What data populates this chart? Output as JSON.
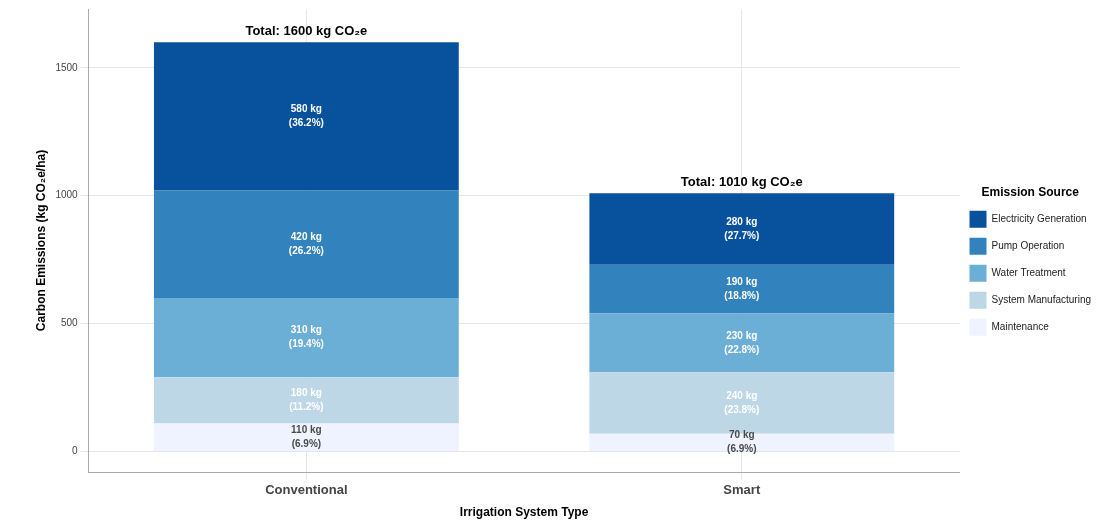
{
  "chart_data": {
    "type": "bar",
    "stacked": true,
    "xlabel": "Irrigation System Type",
    "ylabel": "Carbon Emissions (kg CO₂e/ha)",
    "legend_title": "Emission Source",
    "legend": "right",
    "grid": true,
    "categories": [
      "Conventional",
      "Smart"
    ],
    "ylim": [
      -80,
      1730
    ],
    "yticks": [
      0,
      500,
      1000,
      1500
    ],
    "series": [
      {
        "name": "Maintenance",
        "color": "#eff3ff",
        "values": [
          110,
          70
        ],
        "value_labels": [
          "110 kg\n(6.9%)",
          "70 kg\n(6.9%)"
        ]
      },
      {
        "name": "System Manufacturing",
        "color": "#bdd7e7",
        "values": [
          180,
          240
        ],
        "value_labels": [
          "180 kg\n(11.2%)",
          "240 kg\n(23.8%)"
        ]
      },
      {
        "name": "Water Treatment",
        "color": "#6baed6",
        "values": [
          310,
          230
        ],
        "value_labels": [
          "310 kg\n(19.4%)",
          "230 kg\n(22.8%)"
        ]
      },
      {
        "name": "Pump Operation",
        "color": "#3182bd",
        "values": [
          420,
          190
        ],
        "value_labels": [
          "420 kg\n(26.2%)",
          "190 kg\n(18.8%)"
        ]
      },
      {
        "name": "Electricity Generation",
        "color": "#08519c",
        "values": [
          580,
          280
        ],
        "value_labels": [
          "580 kg\n(36.2%)",
          "280 kg\n(27.7%)"
        ]
      }
    ],
    "totals": [
      "Total: 1600 kg CO₂e",
      "Total: 1010 kg CO₂e"
    ]
  }
}
